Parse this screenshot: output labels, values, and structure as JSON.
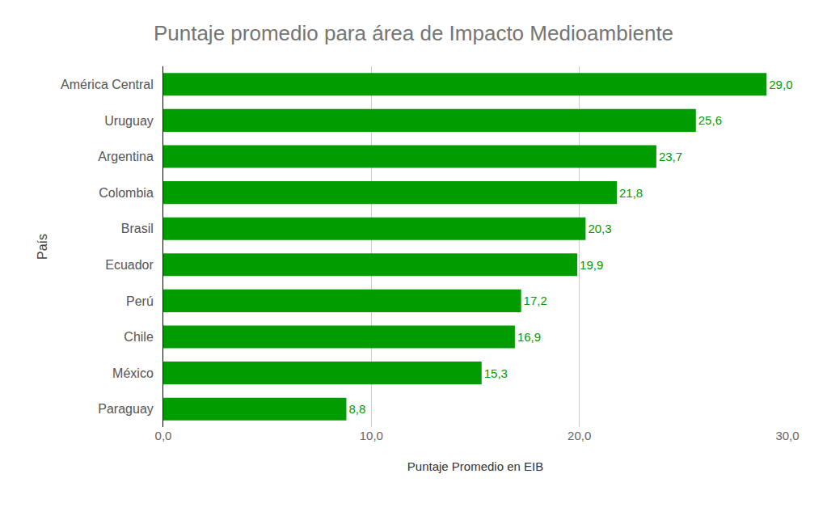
{
  "chart_data": {
    "type": "bar",
    "title": "Puntaje promedio para área de Impacto Medioambiente",
    "x_label": "Puntaje Promedio en EIB",
    "y_label": "País",
    "orientation": "horizontal",
    "categories": [
      "América Central",
      "Uruguay",
      "Argentina",
      "Colombia",
      "Brasil",
      "Ecuador",
      "Perú",
      "Chile",
      "México",
      "Paraguay"
    ],
    "values": [
      29.0,
      25.6,
      23.7,
      21.8,
      20.3,
      19.9,
      17.2,
      16.9,
      15.3,
      8.8
    ],
    "value_labels": [
      "29,0",
      "25,6",
      "23,7",
      "21,8",
      "20,3",
      "19,9",
      "17,2",
      "16,9",
      "15,3",
      "8,8"
    ],
    "color": "#009c00",
    "data_labels": true,
    "xlim": [
      0,
      30
    ],
    "xticks": [
      {
        "value": 0,
        "label": "0,0"
      },
      {
        "value": 10,
        "label": "10,0"
      },
      {
        "value": 20,
        "label": "20,0"
      },
      {
        "value": 30,
        "label": "30,0"
      }
    ],
    "grid": true
  }
}
